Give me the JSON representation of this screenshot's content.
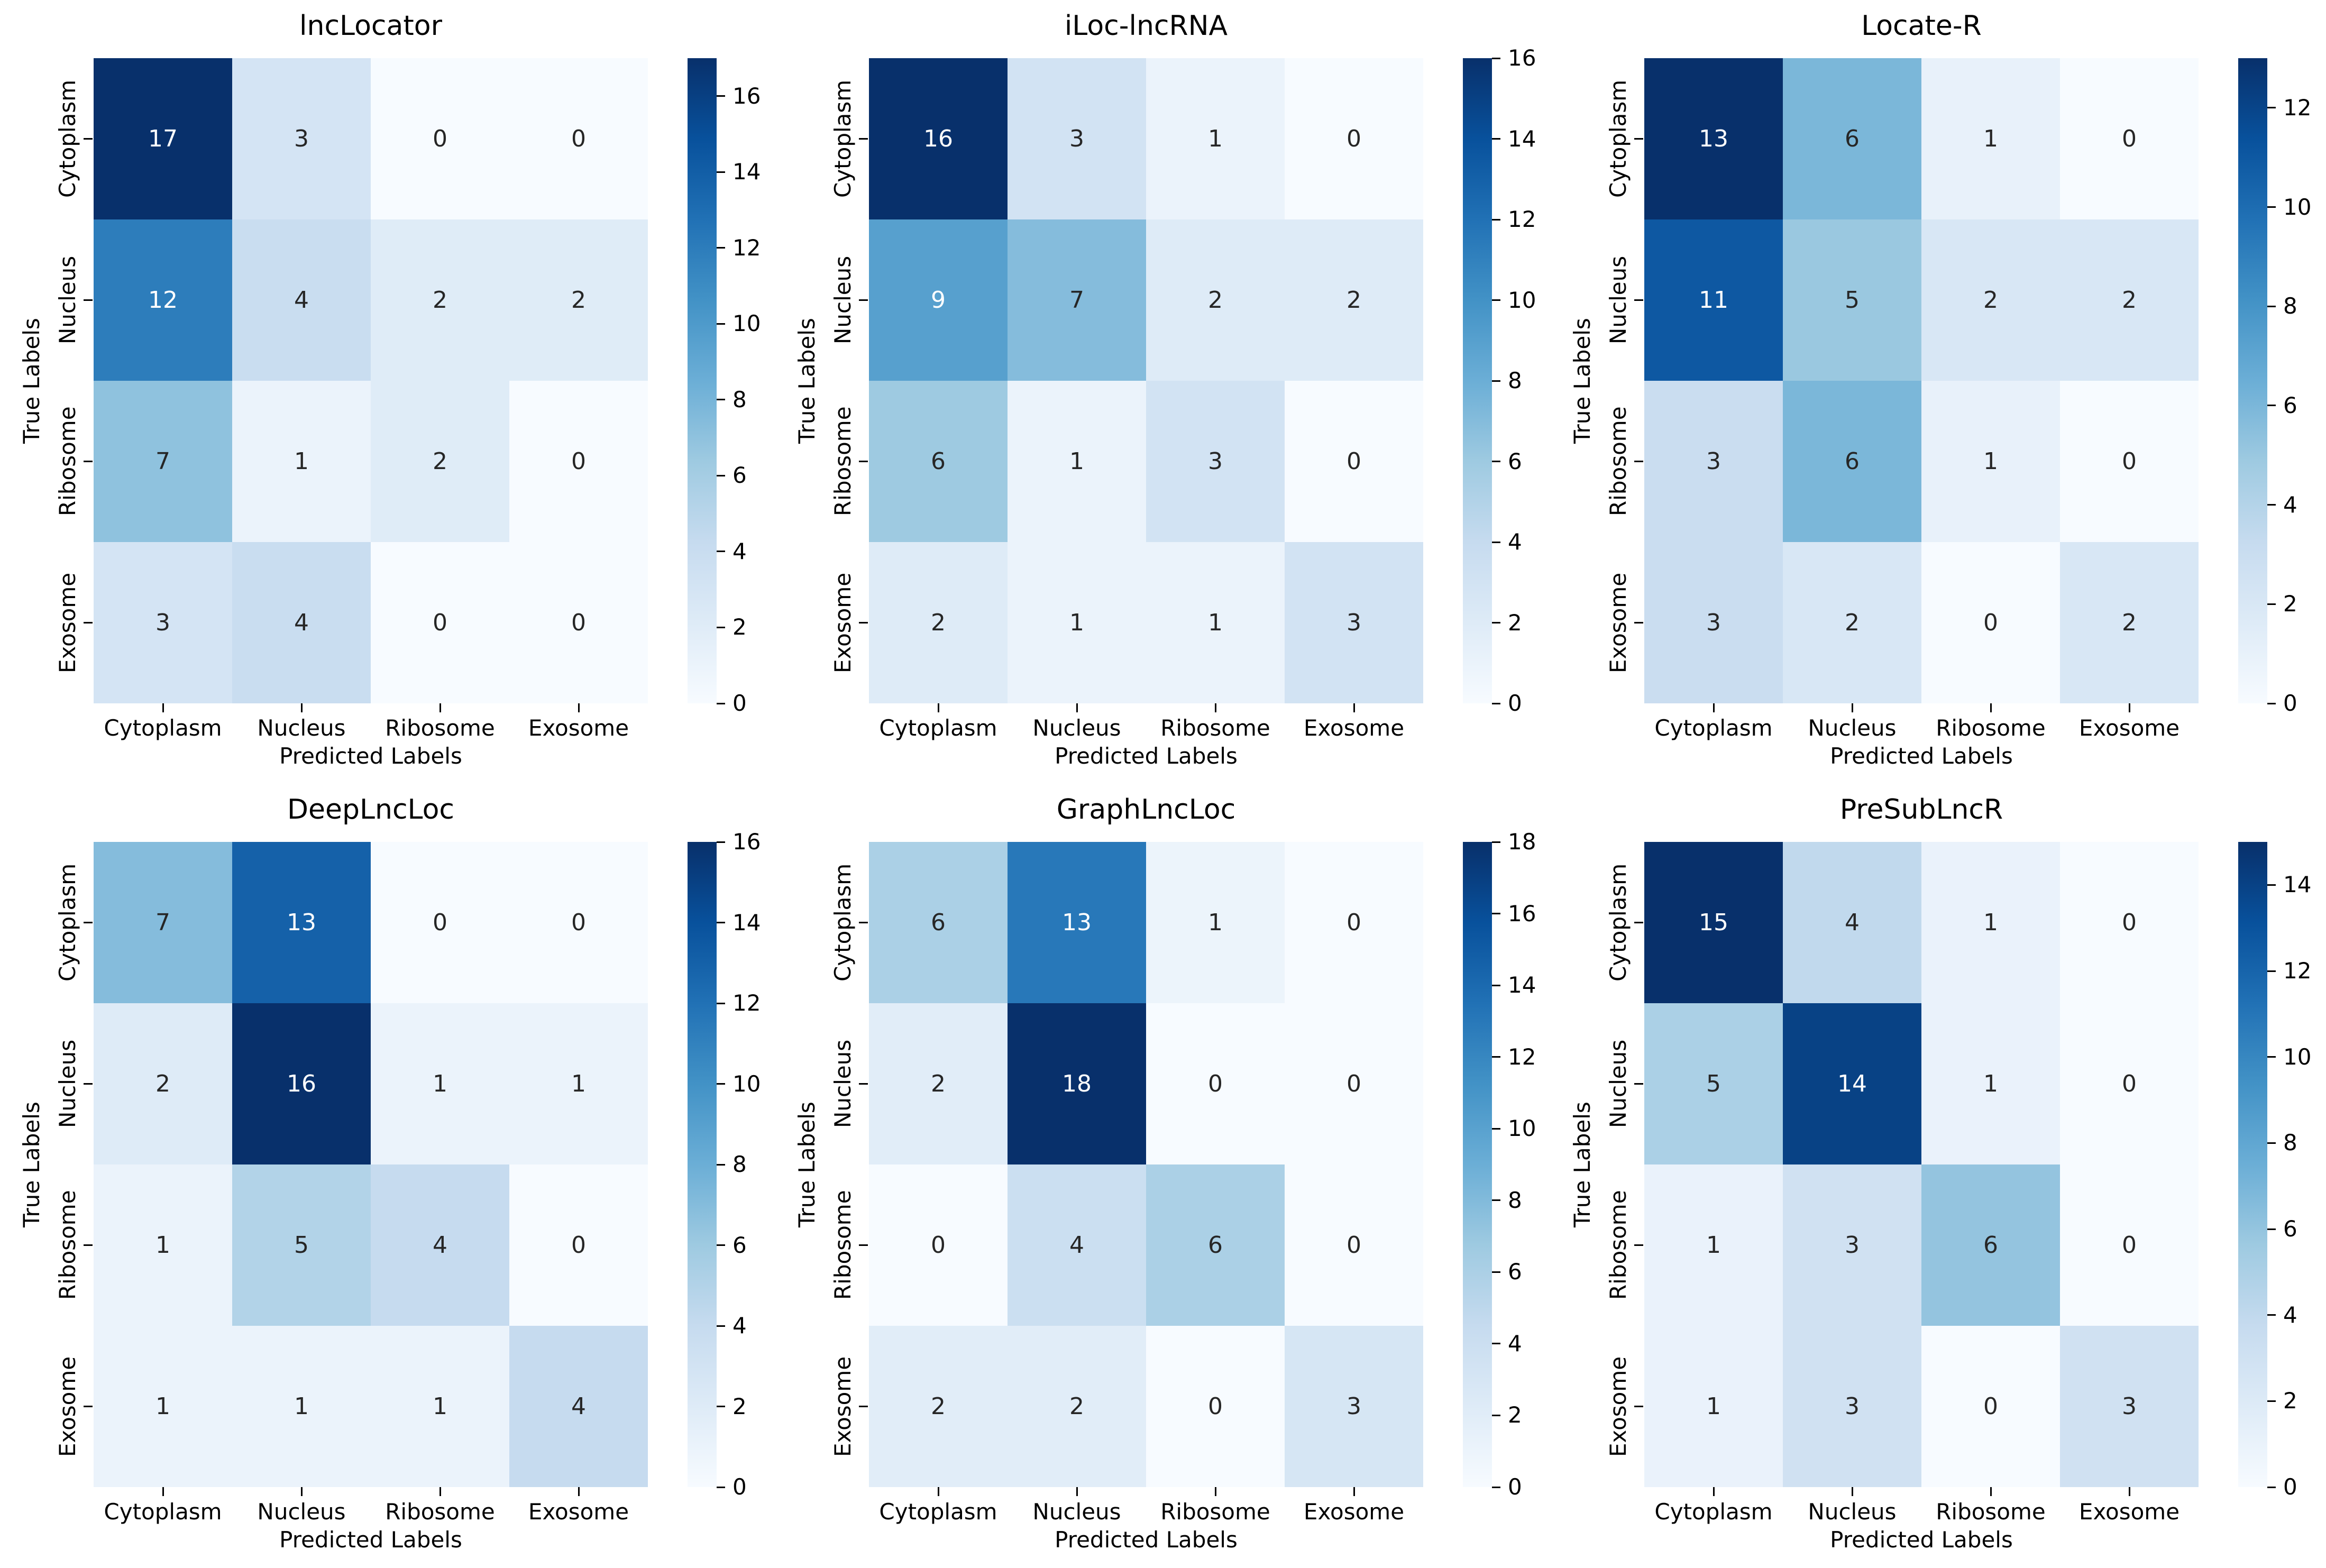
{
  "figure": {
    "xlabel": "Predicted Labels",
    "ylabel": "True Labels",
    "categories": [
      "Cytoplasm",
      "Nucleus",
      "Ribosome",
      "Exosome"
    ]
  },
  "colors": {
    "background": "#ffffff",
    "annot_dark": "#262626",
    "annot_light": "#ffffff",
    "tick_color": "#000000",
    "blues_anchors": [
      "#f7fbff",
      "#deebf7",
      "#c6dbef",
      "#9ecae1",
      "#6baed6",
      "#4292c6",
      "#2171b5",
      "#08519c",
      "#08306b"
    ]
  },
  "chart_data": [
    {
      "type": "heatmap",
      "title": "lncLocator",
      "xlabel": "Predicted Labels",
      "ylabel": "True Labels",
      "x_categories": [
        "Cytoplasm",
        "Nucleus",
        "Ribosome",
        "Exosome"
      ],
      "y_categories": [
        "Cytoplasm",
        "Nucleus",
        "Ribosome",
        "Exosome"
      ],
      "matrix": [
        [
          17,
          3,
          0,
          0
        ],
        [
          12,
          4,
          2,
          2
        ],
        [
          7,
          1,
          2,
          0
        ],
        [
          3,
          4,
          0,
          0
        ]
      ],
      "vmin": 0,
      "vmax": 17,
      "colormap": "Blues",
      "colorbar_ticks": [
        0,
        2,
        4,
        6,
        8,
        10,
        12,
        14,
        16
      ]
    },
    {
      "type": "heatmap",
      "title": "iLoc-lncRNA",
      "xlabel": "Predicted Labels",
      "ylabel": "True Labels",
      "x_categories": [
        "Cytoplasm",
        "Nucleus",
        "Ribosome",
        "Exosome"
      ],
      "y_categories": [
        "Cytoplasm",
        "Nucleus",
        "Ribosome",
        "Exosome"
      ],
      "matrix": [
        [
          16,
          3,
          1,
          0
        ],
        [
          9,
          7,
          2,
          2
        ],
        [
          6,
          1,
          3,
          0
        ],
        [
          2,
          1,
          1,
          3
        ]
      ],
      "vmin": 0,
      "vmax": 16,
      "colormap": "Blues",
      "colorbar_ticks": [
        0,
        2,
        4,
        6,
        8,
        10,
        12,
        14,
        16
      ]
    },
    {
      "type": "heatmap",
      "title": "Locate-R",
      "xlabel": "Predicted Labels",
      "ylabel": "True Labels",
      "x_categories": [
        "Cytoplasm",
        "Nucleus",
        "Ribosome",
        "Exosome"
      ],
      "y_categories": [
        "Cytoplasm",
        "Nucleus",
        "Ribosome",
        "Exosome"
      ],
      "matrix": [
        [
          13,
          6,
          1,
          0
        ],
        [
          11,
          5,
          2,
          2
        ],
        [
          3,
          6,
          1,
          0
        ],
        [
          3,
          2,
          0,
          2
        ]
      ],
      "vmin": 0,
      "vmax": 13,
      "colormap": "Blues",
      "colorbar_ticks": [
        0,
        2,
        4,
        6,
        8,
        10,
        12
      ]
    },
    {
      "type": "heatmap",
      "title": "DeepLncLoc",
      "xlabel": "Predicted Labels",
      "ylabel": "True Labels",
      "x_categories": [
        "Cytoplasm",
        "Nucleus",
        "Ribosome",
        "Exosome"
      ],
      "y_categories": [
        "Cytoplasm",
        "Nucleus",
        "Ribosome",
        "Exosome"
      ],
      "matrix": [
        [
          7,
          13,
          0,
          0
        ],
        [
          2,
          16,
          1,
          1
        ],
        [
          1,
          5,
          4,
          0
        ],
        [
          1,
          1,
          1,
          4
        ]
      ],
      "vmin": 0,
      "vmax": 16,
      "colormap": "Blues",
      "colorbar_ticks": [
        0,
        2,
        4,
        6,
        8,
        10,
        12,
        14,
        16
      ]
    },
    {
      "type": "heatmap",
      "title": "GraphLncLoc",
      "xlabel": "Predicted Labels",
      "ylabel": "True Labels",
      "x_categories": [
        "Cytoplasm",
        "Nucleus",
        "Ribosome",
        "Exosome"
      ],
      "y_categories": [
        "Cytoplasm",
        "Nucleus",
        "Ribosome",
        "Exosome"
      ],
      "matrix": [
        [
          6,
          13,
          1,
          0
        ],
        [
          2,
          18,
          0,
          0
        ],
        [
          0,
          4,
          6,
          0
        ],
        [
          2,
          2,
          0,
          3
        ]
      ],
      "vmin": 0,
      "vmax": 18,
      "colormap": "Blues",
      "colorbar_ticks": [
        0,
        2,
        4,
        6,
        8,
        10,
        12,
        14,
        16,
        18
      ]
    },
    {
      "type": "heatmap",
      "title": "PreSubLncR",
      "xlabel": "Predicted Labels",
      "ylabel": "True Labels",
      "x_categories": [
        "Cytoplasm",
        "Nucleus",
        "Ribosome",
        "Exosome"
      ],
      "y_categories": [
        "Cytoplasm",
        "Nucleus",
        "Ribosome",
        "Exosome"
      ],
      "matrix": [
        [
          15,
          4,
          1,
          0
        ],
        [
          5,
          14,
          1,
          0
        ],
        [
          1,
          3,
          6,
          0
        ],
        [
          1,
          3,
          0,
          3
        ]
      ],
      "vmin": 0,
      "vmax": 15,
      "colormap": "Blues",
      "colorbar_ticks": [
        0,
        2,
        4,
        6,
        8,
        10,
        12,
        14
      ]
    }
  ]
}
